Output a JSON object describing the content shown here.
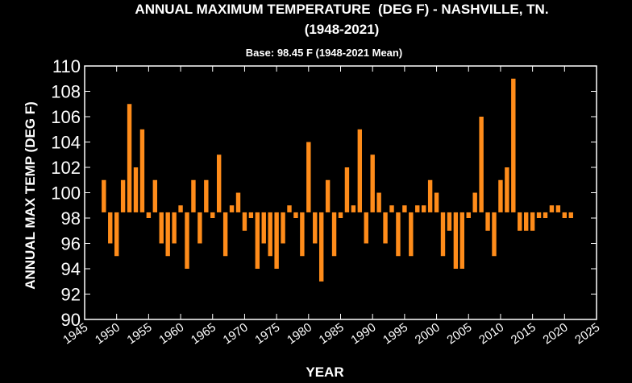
{
  "chart_data": {
    "type": "bar",
    "title": "ANNUAL MAXIMUM TEMPERATURE  (DEG F) - NASHVILLE, TN.",
    "title_line2": "(1948-2021)",
    "subtitle": "Base: 98.45 F (1948-2021 Mean)",
    "xlabel": "YEAR",
    "ylabel": "ANNUAL MAX TEMP (DEG F)",
    "base": 98.45,
    "xlim": [
      1945,
      2025
    ],
    "ylim": [
      90,
      110
    ],
    "x_ticks": [
      "1945",
      "1950",
      "1955",
      "1960",
      "1965",
      "1970",
      "1975",
      "1980",
      "1985",
      "1990",
      "1995",
      "2000",
      "2005",
      "2010",
      "2015",
      "2020",
      "2025"
    ],
    "y_ticks": [
      "90",
      "92",
      "94",
      "96",
      "98",
      "100",
      "102",
      "104",
      "106",
      "108",
      "110"
    ],
    "bar_color": "#FF8C1A",
    "background": "#000000",
    "grid": false,
    "x": [
      1948,
      1949,
      1950,
      1951,
      1952,
      1953,
      1954,
      1955,
      1956,
      1957,
      1958,
      1959,
      1960,
      1961,
      1962,
      1963,
      1964,
      1965,
      1966,
      1967,
      1968,
      1969,
      1970,
      1971,
      1972,
      1973,
      1974,
      1975,
      1976,
      1977,
      1978,
      1979,
      1980,
      1981,
      1982,
      1983,
      1984,
      1985,
      1986,
      1987,
      1988,
      1989,
      1990,
      1991,
      1992,
      1993,
      1994,
      1995,
      1996,
      1997,
      1998,
      1999,
      2000,
      2001,
      2002,
      2003,
      2004,
      2005,
      2006,
      2007,
      2008,
      2009,
      2010,
      2011,
      2012,
      2013,
      2014,
      2015,
      2016,
      2017,
      2018,
      2019,
      2020,
      2021
    ],
    "values": [
      101,
      96,
      95,
      101,
      107,
      102,
      105,
      98,
      101,
      96,
      95,
      96,
      99,
      94,
      101,
      96,
      101,
      98,
      103,
      95,
      99,
      100,
      97,
      98,
      94,
      96,
      95,
      94,
      96,
      99,
      98,
      95,
      104,
      96,
      93,
      101,
      95,
      98,
      102,
      99,
      105,
      96,
      103,
      100,
      96,
      99,
      95,
      99,
      95,
      99,
      99,
      101,
      100,
      95,
      97,
      94,
      94,
      98,
      100,
      106,
      97,
      95,
      101,
      102,
      109,
      97,
      97,
      97,
      98,
      98,
      99,
      99,
      98,
      98
    ]
  }
}
